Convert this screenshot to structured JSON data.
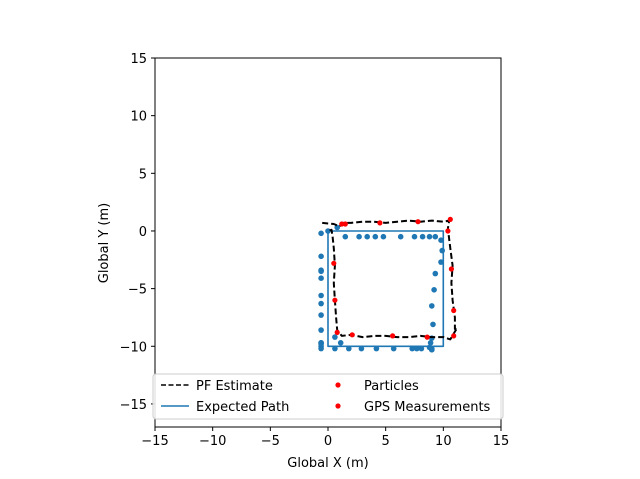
{
  "chart_data": {
    "type": "scatter",
    "title": "",
    "xlabel": "Global X (m)",
    "ylabel": "Global Y (m)",
    "xlim": [
      -15,
      15
    ],
    "ylim": [
      -17,
      15
    ],
    "xticks": [
      -15,
      -10,
      -5,
      0,
      5,
      10,
      15
    ],
    "yticks": [
      -15,
      -10,
      -5,
      0,
      5,
      10,
      15
    ],
    "xtick_labels": [
      "−15",
      "−10",
      "−5",
      "0",
      "5",
      "10",
      "15"
    ],
    "ytick_labels": [
      "−15",
      "−10",
      "−5",
      "0",
      "5",
      "10",
      "15"
    ],
    "grid": false,
    "legend_placement": "lower-center",
    "series": [
      {
        "name": "PF Estimate",
        "kind": "line",
        "style": "dashed",
        "color": "#000000",
        "x": [
          -0.5,
          0.5,
          1.0,
          1.3,
          2.0,
          3.0,
          4.0,
          5.0,
          6.0,
          7.0,
          8.0,
          9.0,
          10.0,
          10.5,
          10.4,
          10.6,
          10.8,
          10.7,
          10.8,
          11.0,
          11.0,
          11.2,
          10.6,
          10.0,
          9.0,
          8.0,
          7.0,
          6.0,
          5.0,
          4.0,
          3.0,
          2.0,
          1.2,
          0.8,
          0.7,
          0.6,
          0.5,
          0.6,
          0.5,
          0.4,
          0.3,
          0.0
        ],
        "y": [
          0.7,
          0.6,
          0.4,
          0.7,
          0.7,
          0.8,
          0.8,
          0.7,
          0.8,
          0.9,
          0.8,
          0.9,
          0.8,
          0.9,
          0.2,
          -1.5,
          -3.0,
          -4.5,
          -6.0,
          -7.5,
          -8.5,
          -8.4,
          -9.4,
          -9.2,
          -9.2,
          -9.1,
          -9.2,
          -9.2,
          -9.1,
          -9.1,
          -9.2,
          -9.0,
          -9.1,
          -8.6,
          -7.5,
          -6.0,
          -4.5,
          -3.0,
          -1.5,
          -0.5,
          0.1,
          0.0
        ]
      },
      {
        "name": "Expected Path",
        "kind": "line",
        "style": "solid",
        "color": "#1f77b4",
        "x": [
          0,
          10,
          10,
          0,
          0
        ],
        "y": [
          0,
          0,
          -10,
          -10,
          0
        ]
      },
      {
        "name": "Particles",
        "kind": "scatter",
        "color": "#1f77b4",
        "x": [
          0.0,
          0.8,
          1.5,
          2.7,
          3.4,
          4.1,
          4.8,
          6.3,
          7.5,
          8.2,
          8.8,
          9.3,
          9.8,
          9.9,
          9.8,
          9.3,
          9.2,
          9.0,
          9.1,
          9.0,
          8.9,
          9.0,
          9.0,
          9.0,
          8.8,
          8.1,
          7.7,
          7.3,
          5.7,
          4.2,
          2.9,
          1.8,
          1.1,
          0.6,
          0.6,
          -0.6,
          -0.6,
          -0.6,
          -0.6,
          -0.6,
          -0.6,
          -0.6,
          -0.6,
          -0.6,
          -0.6,
          -0.6,
          -0.6,
          -0.6,
          -0.6
        ],
        "y": [
          0.0,
          0.3,
          -0.5,
          -0.5,
          -0.5,
          -0.5,
          -0.5,
          -0.5,
          -0.5,
          -0.5,
          -0.5,
          -0.5,
          -0.8,
          -1.7,
          -2.7,
          -3.7,
          -5.1,
          -6.5,
          -8.1,
          -9.3,
          -9.7,
          -10.2,
          -10.3,
          -10.3,
          -10.1,
          -10.2,
          -10.2,
          -10.2,
          -10.2,
          -10.2,
          -10.2,
          -10.2,
          -9.7,
          -9.2,
          -10.2,
          -10.0,
          -9.7,
          -9.7,
          -8.6,
          -7.3,
          -6.3,
          -5.6,
          -4.1,
          -3.4,
          -3.5,
          -2.2,
          -0.2,
          -10.2,
          -9.8
        ]
      },
      {
        "name": "GPS Measurements",
        "kind": "scatter",
        "color": "#ff0000",
        "x": [
          1.2,
          1.5,
          4.5,
          7.8,
          10.6,
          10.4,
          10.7,
          10.9,
          10.9,
          8.6,
          5.6,
          2.1,
          0.8,
          0.6,
          0.5
        ],
        "y": [
          0.6,
          0.6,
          0.7,
          0.8,
          1.0,
          0.0,
          -3.3,
          -6.9,
          -9.1,
          -9.2,
          -9.1,
          -9.0,
          -8.8,
          -6.0,
          -2.8
        ]
      }
    ]
  }
}
